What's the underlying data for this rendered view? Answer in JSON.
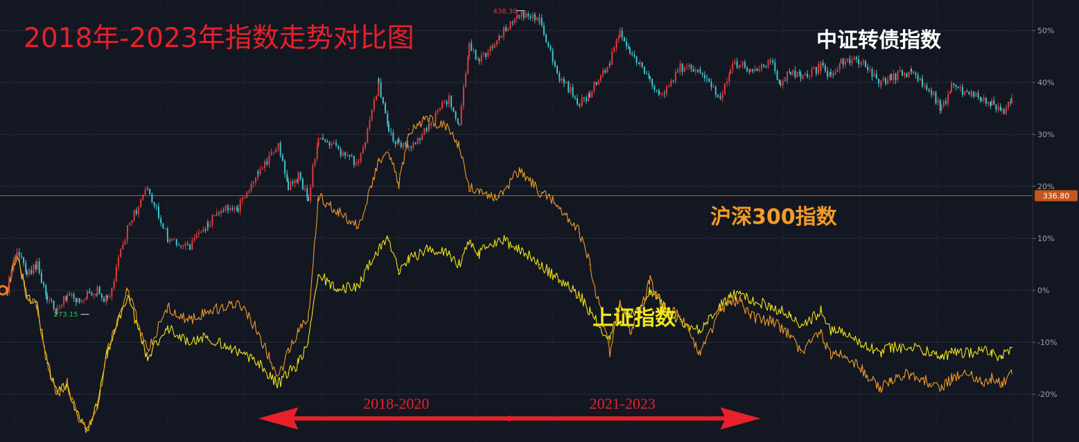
{
  "title": "2018年-2023年指数走势对比图",
  "colors": {
    "background": "#131722",
    "title": "#e8202a",
    "convertible_up": "#e23b3b",
    "convertible_down": "#38c8d0",
    "hs300": "#f39c25",
    "shanghai": "#f2e618",
    "ref_line": "#c4551c",
    "period_arrow": "#e8202a"
  },
  "chart_data": {
    "type": "line",
    "title": "2018年-2023年指数走势对比图",
    "xlabel": "",
    "ylabel": "",
    "ylim": [
      -28,
      55
    ],
    "yticks": [
      -20,
      -10,
      0,
      10,
      20,
      30,
      40,
      50
    ],
    "ytick_labels": [
      "-20%",
      "-10%",
      "0%",
      "10%",
      "20%",
      "30%",
      "40%",
      "50%"
    ],
    "x_domain": [
      0,
      100
    ],
    "grid": true,
    "series": [
      {
        "name": "中证转债指数",
        "style": "candles",
        "x": [
          0,
          1,
          2,
          3,
          4,
          5,
          6,
          7,
          8,
          9,
          10,
          12,
          14,
          16,
          18,
          20,
          22,
          23,
          25,
          27,
          28,
          29,
          30,
          31,
          33,
          35,
          37,
          38,
          39,
          40,
          42,
          44,
          45,
          46,
          47,
          49,
          51,
          53,
          55,
          57,
          58,
          60,
          61,
          62,
          63,
          64,
          65,
          67,
          69,
          71,
          72,
          73,
          74,
          76,
          77,
          78,
          79,
          81,
          82,
          83,
          85,
          87,
          88,
          90,
          92,
          93,
          94,
          96,
          97,
          98,
          99,
          100
        ],
        "y": [
          0,
          8,
          3,
          5,
          -2,
          -4,
          -1,
          -2,
          -1,
          0,
          -2,
          12,
          20,
          10,
          8,
          13,
          16,
          16,
          22,
          28,
          20,
          22,
          18,
          30,
          27,
          24,
          40,
          30,
          28,
          27,
          32,
          37,
          32,
          47,
          44,
          49,
          53,
          52,
          41,
          36,
          38,
          44,
          50,
          46,
          43,
          40,
          37,
          43,
          42,
          37,
          43,
          44,
          42,
          44,
          40,
          42,
          41,
          43,
          41,
          44,
          44,
          40,
          41,
          42,
          38,
          35,
          39,
          38,
          37,
          36,
          34,
          37
        ]
      },
      {
        "name": "沪深300指数",
        "style": "line",
        "x": [
          0,
          1,
          2,
          3,
          4,
          5,
          6,
          7,
          8,
          9,
          10,
          12,
          14,
          16,
          18,
          20,
          22,
          23,
          25,
          27,
          28,
          29,
          30,
          31,
          33,
          35,
          37,
          38,
          39,
          40,
          42,
          44,
          45,
          46,
          47,
          49,
          51,
          53,
          55,
          57,
          58,
          60,
          61,
          62,
          63,
          64,
          65,
          67,
          69,
          71,
          72,
          73,
          74,
          76,
          77,
          78,
          79,
          81,
          82,
          83,
          85,
          87,
          88,
          90,
          92,
          93,
          94,
          96,
          97,
          98,
          99,
          100
        ],
        "y": [
          0,
          7,
          -1,
          -3,
          -14,
          -20,
          -18,
          -24,
          -27,
          -22,
          -12,
          0,
          -12,
          -3,
          -6,
          -4,
          -3,
          -2,
          -8,
          -17,
          -12,
          -8,
          -5,
          18,
          15,
          12,
          25,
          27,
          20,
          31,
          33,
          31,
          28,
          20,
          19,
          18,
          23,
          19,
          16,
          11,
          5,
          -12,
          -2,
          -8,
          -4,
          2,
          -3,
          -5,
          -12,
          -4,
          -2,
          -2,
          -5,
          -6,
          -7,
          -9,
          -12,
          -8,
          -13,
          -12,
          -15,
          -19,
          -17,
          -16,
          -18,
          -19,
          -17,
          -16,
          -18,
          -17,
          -18,
          -16
        ]
      },
      {
        "name": "上证指数",
        "style": "line",
        "x": [
          0,
          1,
          2,
          3,
          4,
          5,
          6,
          7,
          8,
          9,
          10,
          12,
          14,
          16,
          18,
          20,
          22,
          23,
          25,
          27,
          28,
          29,
          30,
          31,
          33,
          35,
          37,
          38,
          39,
          40,
          42,
          44,
          45,
          46,
          47,
          49,
          51,
          53,
          55,
          57,
          58,
          60,
          61,
          62,
          63,
          64,
          65,
          67,
          69,
          71,
          72,
          73,
          74,
          76,
          77,
          78,
          79,
          81,
          82,
          83,
          85,
          87,
          88,
          90,
          92,
          93,
          94,
          96,
          97,
          98,
          99,
          100
        ],
        "y": [
          0,
          7,
          -1,
          -3,
          -14,
          -20,
          -18,
          -24,
          -27,
          -22,
          -12,
          -1,
          -13,
          -7,
          -10,
          -9,
          -11,
          -12,
          -14,
          -18,
          -16,
          -14,
          -10,
          3,
          0,
          1,
          8,
          10,
          4,
          6,
          8,
          7,
          5,
          9,
          7,
          10,
          8,
          5,
          2,
          -1,
          -4,
          -10,
          -3,
          -5,
          -4,
          0,
          -2,
          -6,
          -8,
          -3,
          -1,
          -1,
          -2,
          -3,
          -4,
          -5,
          -7,
          -4,
          -8,
          -8,
          -10,
          -12,
          -11,
          -11,
          -12,
          -13,
          -12,
          -12,
          -11,
          -12,
          -13,
          -11
        ]
      }
    ],
    "reference_line": {
      "value": 18.2,
      "label": "336.80"
    },
    "annotations": [
      {
        "text": "438.30",
        "x": 51,
        "y": 53
      },
      {
        "text": "273.15",
        "x": 5,
        "y": -4.5
      }
    ],
    "period_markers": [
      {
        "text": "2018-2020",
        "from": 25,
        "to": 50
      },
      {
        "text": "2021-2023",
        "from": 50,
        "to": 75
      }
    ],
    "series_labels": [
      "中证转债指数",
      "沪深300指数",
      "上证指数"
    ]
  }
}
